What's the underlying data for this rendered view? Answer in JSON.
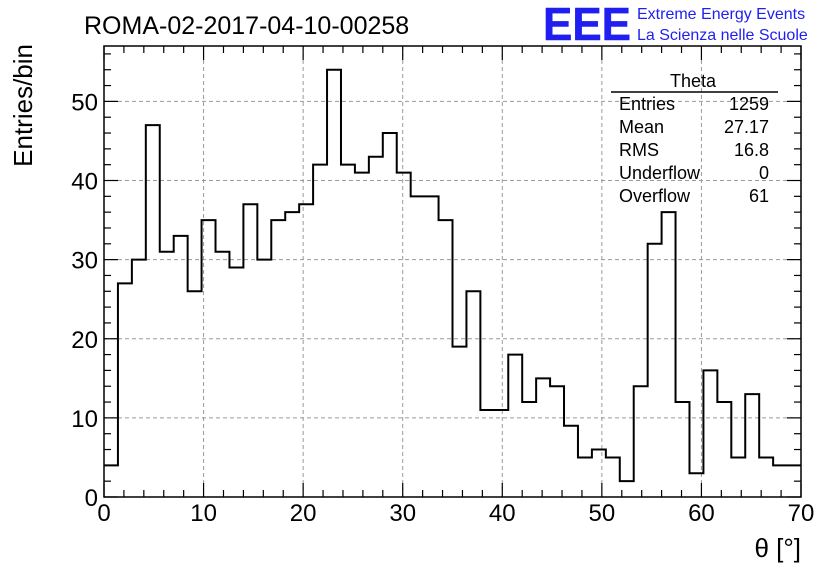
{
  "chart_data": {
    "type": "histogram",
    "title": "ROMA-02-2017-04-10-00258",
    "xlabel": "θ [°]",
    "ylabel": "Entries/bin",
    "xlim": [
      0,
      70
    ],
    "ylim": [
      0,
      57
    ],
    "bin_width": 1.4,
    "grid": true,
    "x_ticks": [
      "0",
      "10",
      "20",
      "30",
      "40",
      "50",
      "60",
      "70"
    ],
    "y_ticks": [
      "0",
      "10",
      "20",
      "30",
      "40",
      "50"
    ],
    "values": [
      4,
      27,
      30,
      47,
      31,
      33,
      26,
      35,
      31,
      29,
      37,
      30,
      35,
      36,
      37,
      42,
      54,
      42,
      41,
      43,
      46,
      41,
      38,
      38,
      35,
      19,
      26,
      11,
      11,
      18,
      12,
      15,
      14,
      9,
      5,
      6,
      5,
      2,
      14,
      32,
      36,
      12,
      3,
      16,
      12,
      5,
      13,
      5,
      4,
      4
    ],
    "line_color": "#000000",
    "grid_color": "#9a9a9a"
  },
  "stats_box": {
    "name": "Theta",
    "rows": [
      {
        "label": "Entries",
        "value": "1259"
      },
      {
        "label": "Mean",
        "value": "27.17"
      },
      {
        "label": "RMS",
        "value": "16.8"
      },
      {
        "label": "Underflow",
        "value": "0"
      },
      {
        "label": "Overflow",
        "value": "61"
      }
    ]
  },
  "logo": {
    "mark": "EEE",
    "line1": "Extreme Energy Events",
    "line2": "La Scienza nelle Scuole",
    "color": "#1f1ff0"
  }
}
